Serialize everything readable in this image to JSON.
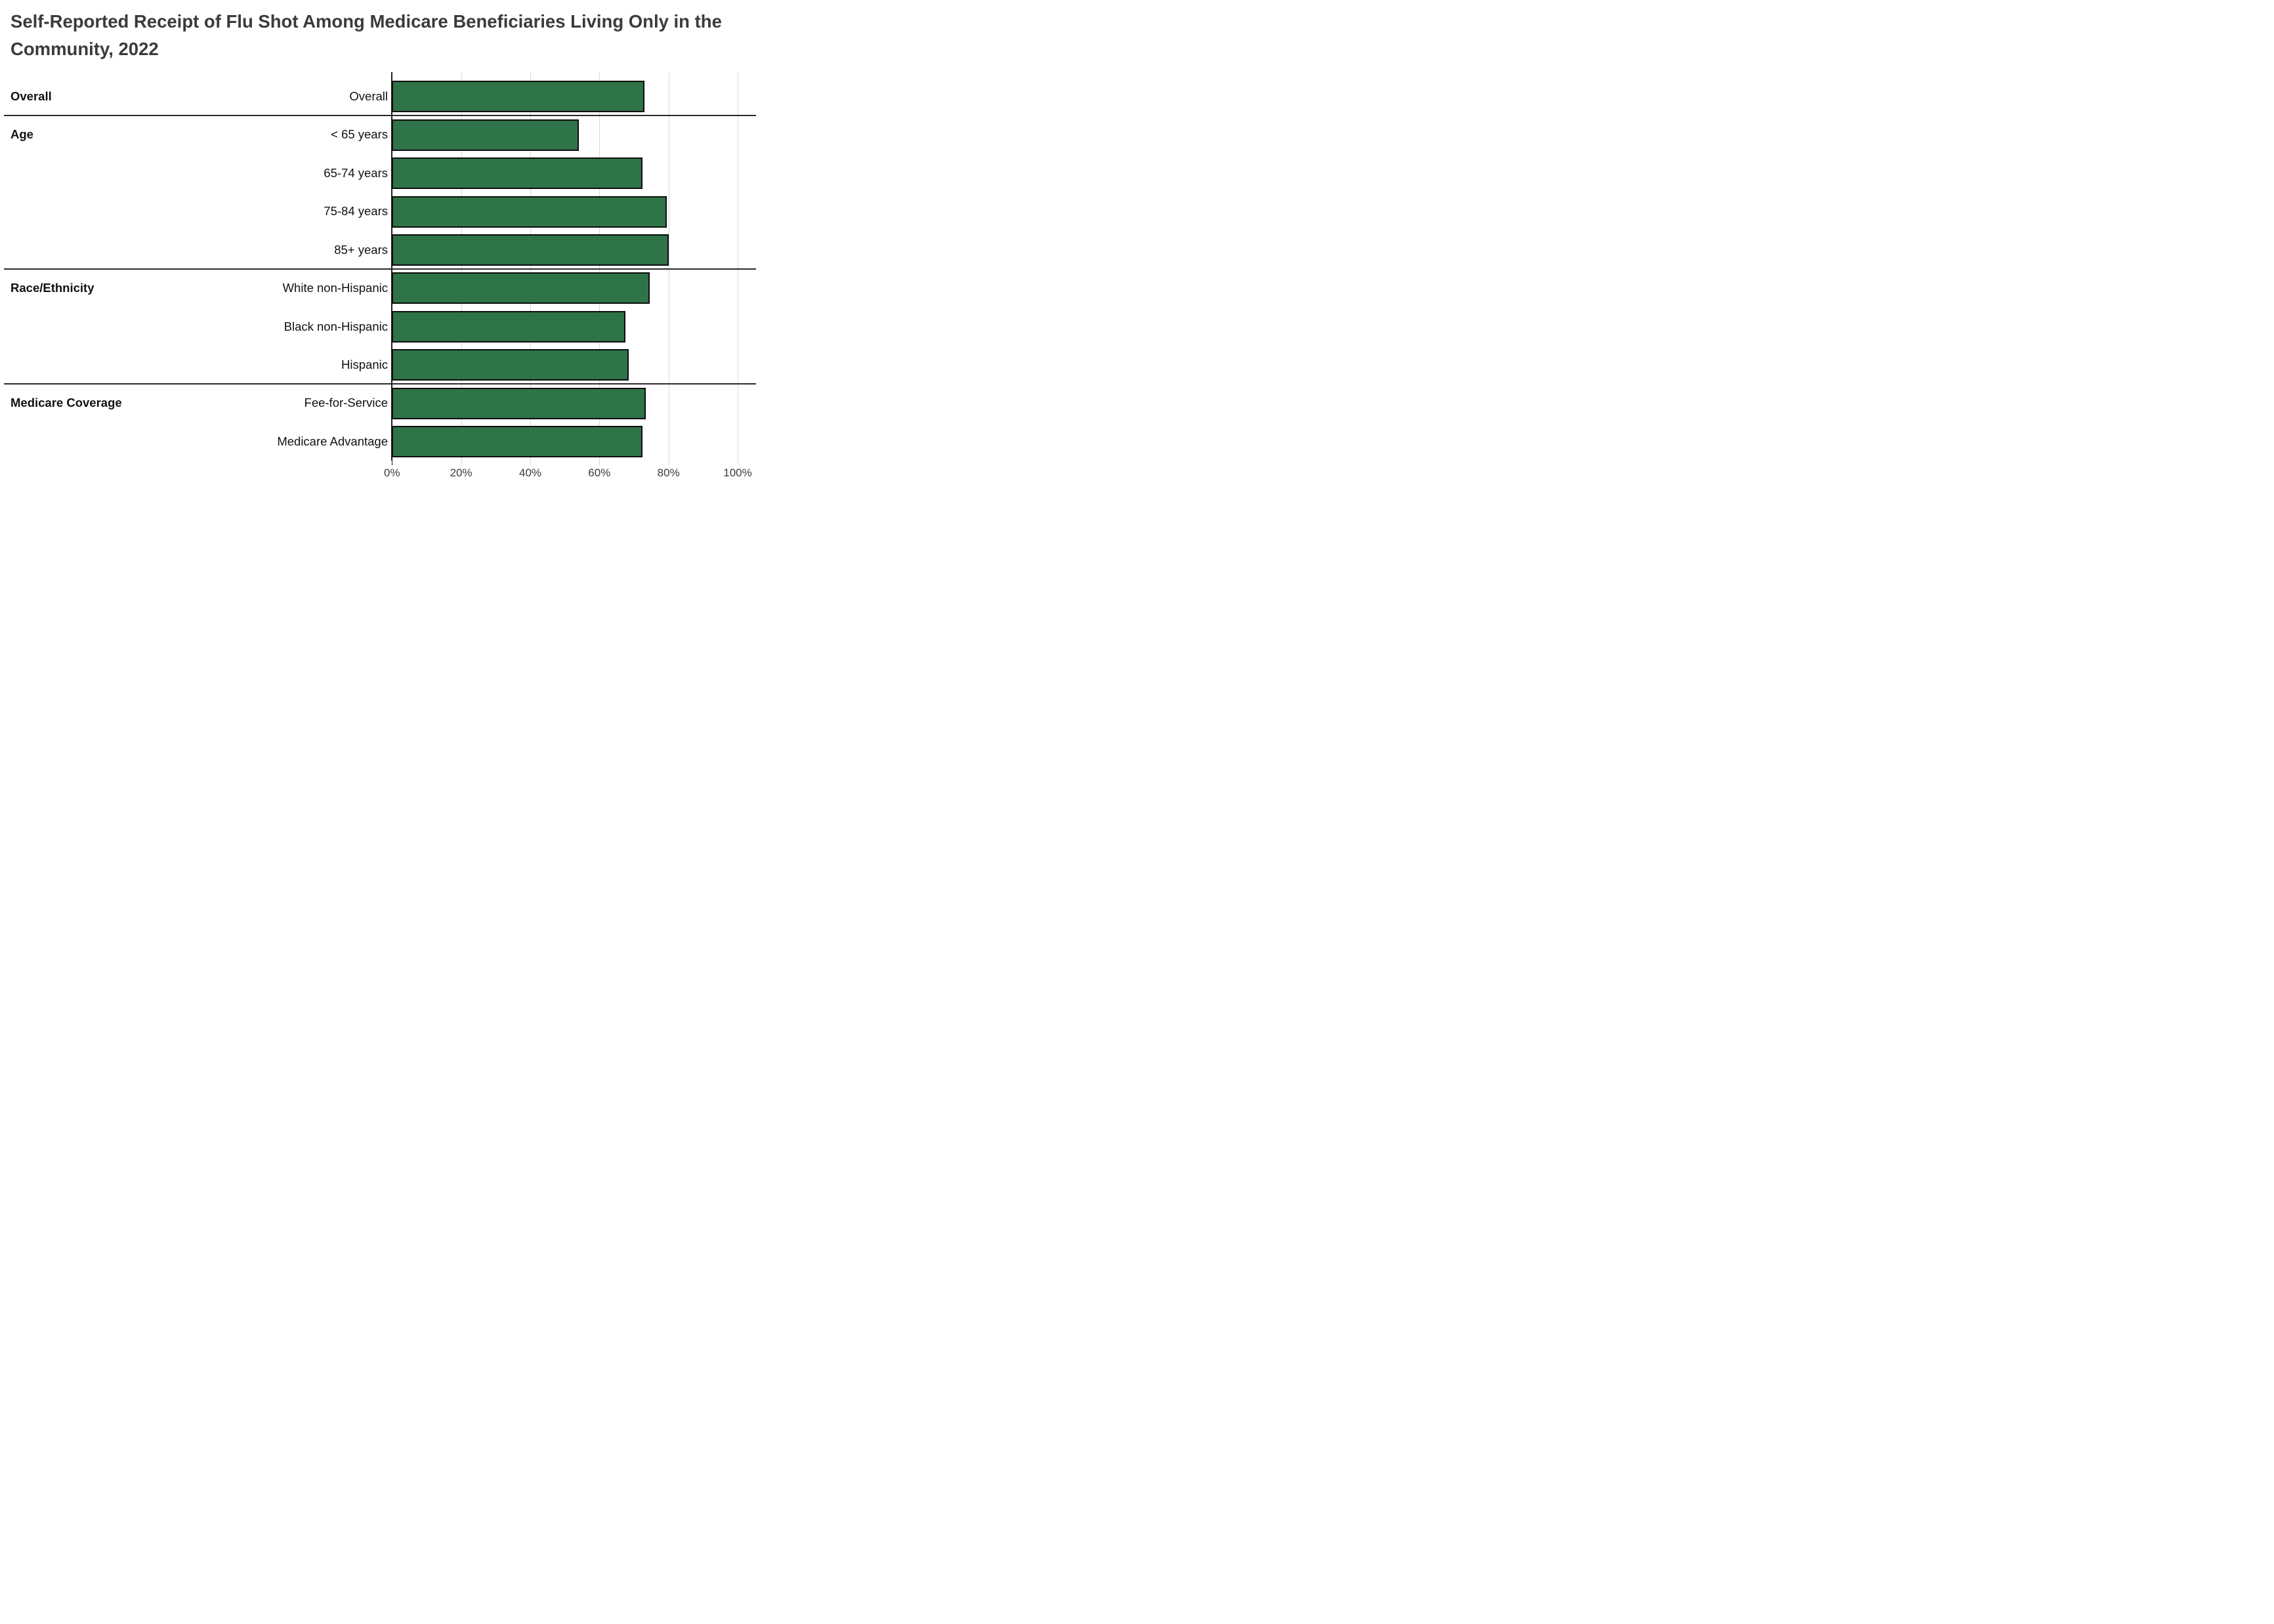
{
  "header": {
    "title": "Self-Reported Receipt of Flu Shot Among Medicare Beneficiaries Living Only in the Community, 2022",
    "title_lines": [
      "Self-Reported Receipt of Flu Shot Among Medicare Beneficiaries Living Only in the",
      "Community, 2022"
    ]
  },
  "chart_data": {
    "type": "bar",
    "orientation": "horizontal",
    "title": "Self-Reported Receipt of Flu Shot Among Medicare Beneficiaries Living Only in the Community, 2022",
    "categories": [
      "Overall",
      "< 65 years",
      "65-74 years",
      "75-84 years",
      "85+ years",
      "White non-Hispanic",
      "Black non-Hispanic",
      "Hispanic",
      "Fee-for-Service",
      "Medicare Advantage"
    ],
    "values": [
      73,
      54,
      72.5,
      79.5,
      80,
      74.5,
      67.5,
      68.5,
      73.5,
      72.5
    ],
    "unit": "%",
    "sections": [
      {
        "label": "Overall",
        "start_row": 0
      },
      {
        "label": "Age",
        "start_row": 1
      },
      {
        "label": "Race/Ethnicity",
        "start_row": 5
      },
      {
        "label": "Medicare Coverage",
        "start_row": 8
      }
    ],
    "x_tick_labels": [
      "0%",
      "20%",
      "40%",
      "60%",
      "80%",
      "100%"
    ],
    "x_tick_values": [
      0,
      20,
      40,
      60,
      80,
      100
    ],
    "xlim": [
      0,
      100
    ],
    "grid": true,
    "legend": false,
    "colors": {
      "bar_fill": "#2f7348",
      "bar_border": "#0d0d0d",
      "gridline": "#d7d7d7",
      "zero_axis": "#1a1a1a",
      "section_divider": "#2b2b2b",
      "title_text": "#3b3b3b",
      "label_text": "#111111",
      "axis_text": "#3b3b3b",
      "background": "#ffffff"
    }
  }
}
